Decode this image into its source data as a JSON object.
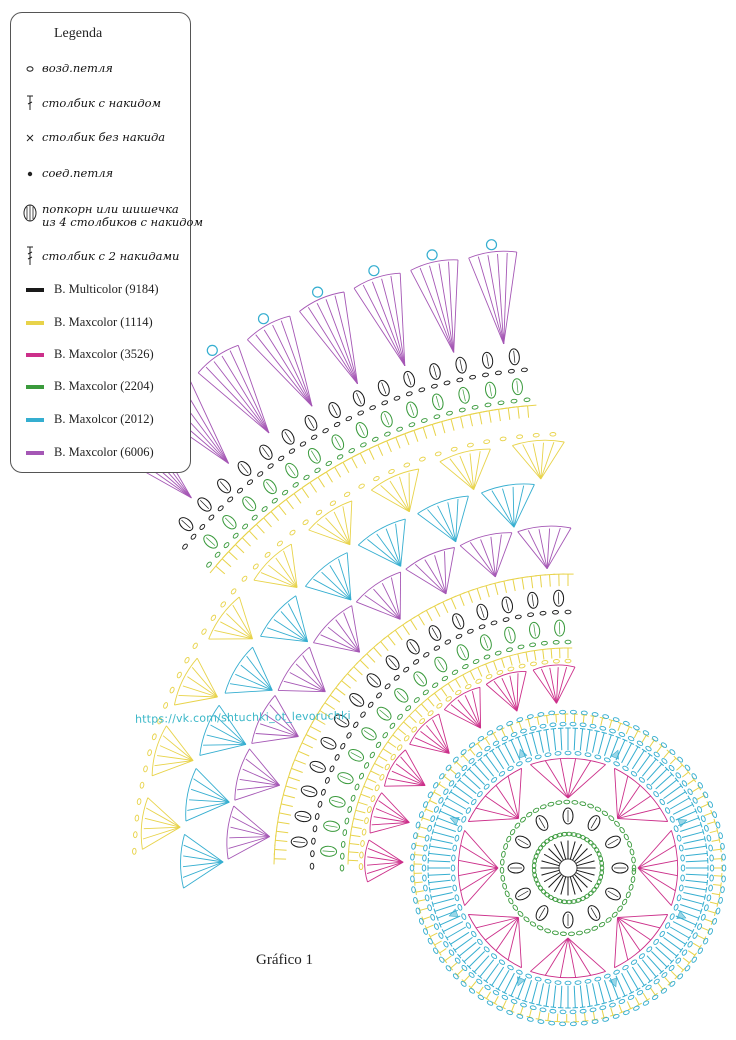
{
  "legend": {
    "title": "Legenda",
    "symbols": [
      {
        "icon": "chain-stitch-icon",
        "label": "возд.петля"
      },
      {
        "icon": "double-crochet-icon",
        "label": "столбик с накидом"
      },
      {
        "icon": "single-crochet-icon",
        "label": "столбик без накида"
      },
      {
        "icon": "slip-stitch-icon",
        "label": "соед.петля"
      },
      {
        "icon": "popcorn-icon",
        "label": "попкорн или шишечка\nиз 4 столбиков с накидом"
      },
      {
        "icon": "treble-crochet-icon",
        "label": "столбик с 2 накидами"
      }
    ],
    "yarns": [
      {
        "label": "B. Multicolor (9184)",
        "color": "#1a1a1a"
      },
      {
        "label": "B. Maxcolor (1114)",
        "color": "#e8d34a"
      },
      {
        "label": "B. Maxcolor (3526)",
        "color": "#cc2f8a"
      },
      {
        "label": "B. Maxcolor (2204)",
        "color": "#3a9a3c"
      },
      {
        "label": "B. Maxolcor (2012)",
        "color": "#35aed0"
      },
      {
        "label": "B. Maxcolor (6006)",
        "color": "#a557b5"
      }
    ]
  },
  "watermark": "https://vk.com/shtuchki_ot_levoruchki",
  "caption": "Gráfico 1",
  "colors": {
    "black": "#1a1a1a",
    "yellow": "#e8d34a",
    "magenta": "#cc2f8a",
    "green": "#3a9a3c",
    "cyan": "#35aed0",
    "purple": "#a557b5"
  }
}
